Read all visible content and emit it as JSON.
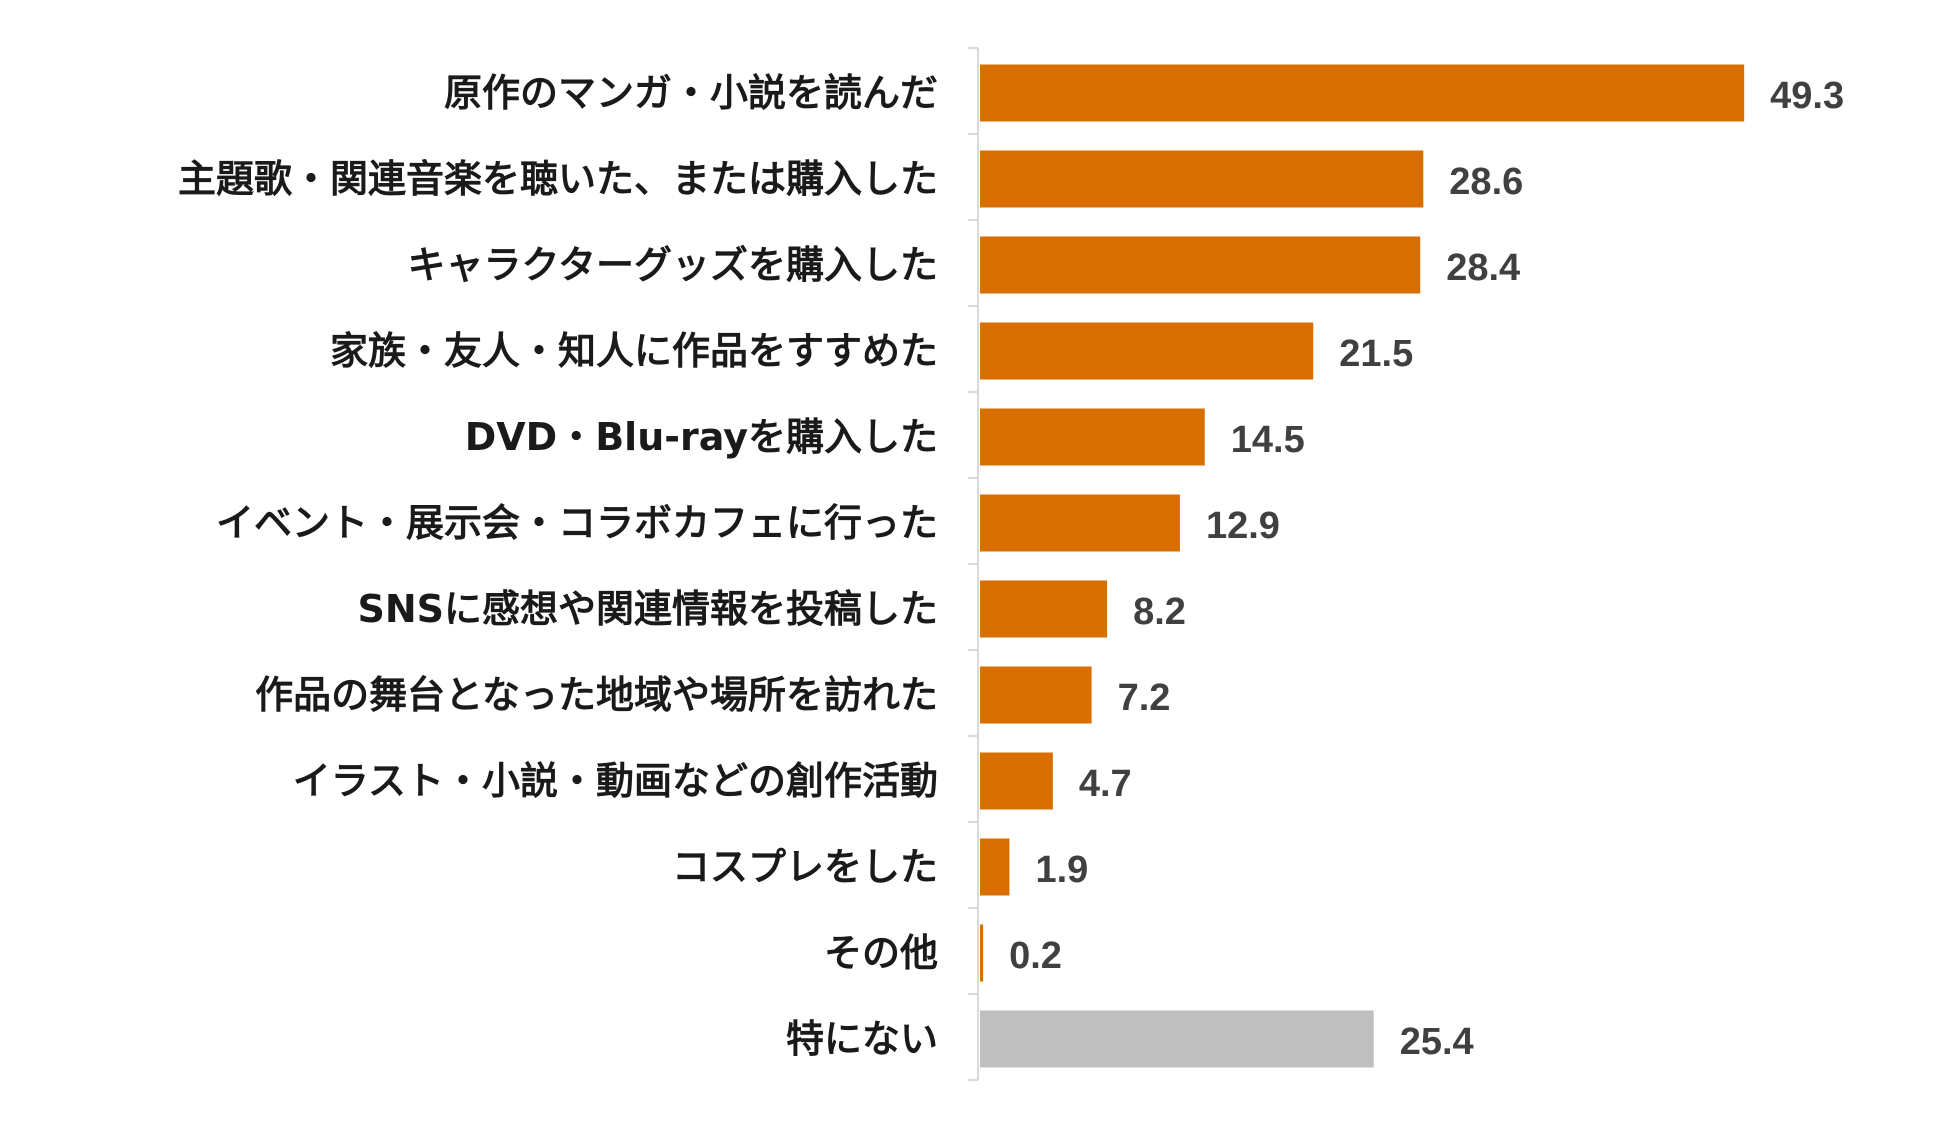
{
  "chart_data": {
    "type": "bar",
    "orientation": "horizontal",
    "categories": [
      "原作のマンガ・小説を読んだ",
      "主題歌・関連音楽を聴いた、または購入した",
      "キャラクターグッズを購入した",
      "家族・友人・知人に作品をすすめた",
      "DVD・Blu-rayを購入した",
      "イベント・展示会・コラボカフェに行った",
      "SNSに感想や関連情報を投稿した",
      "作品の舞台となった地域や場所を訪れた",
      "イラスト・小説・動画などの創作活動",
      "コスプレをした",
      "その他",
      "特にない"
    ],
    "values": [
      49.3,
      28.6,
      28.4,
      21.5,
      14.5,
      12.9,
      8.2,
      7.2,
      4.7,
      1.9,
      0.2,
      25.4
    ],
    "value_labels": [
      "49.3",
      "28.6",
      "28.4",
      "21.5",
      "14.5",
      "12.9",
      "8.2",
      "7.2",
      "4.7",
      "1.9",
      "0.2",
      "25.4"
    ],
    "bar_colors": [
      "#d86e00",
      "#d86e00",
      "#d86e00",
      "#d86e00",
      "#d86e00",
      "#d86e00",
      "#d86e00",
      "#d86e00",
      "#d86e00",
      "#d86e00",
      "#d86e00",
      "#bfbfbf"
    ],
    "xlim": [
      0,
      50
    ],
    "grid": false,
    "legend": "none",
    "title": "",
    "xlabel": "",
    "ylabel": ""
  },
  "colors": {
    "accent": "#d86e00",
    "none_bar": "#bfbfbf",
    "axis": "#d9d9d9",
    "category_text": "#1a1a1a",
    "value_text": "#404040"
  }
}
